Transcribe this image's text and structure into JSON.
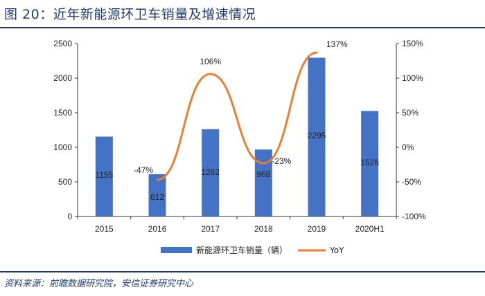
{
  "header": {
    "title": "图 20：近年新能源环卫车销量及增速情况"
  },
  "footer": {
    "source": "资料来源：前瞻数据研究院，安信证券研究中心"
  },
  "colors": {
    "bar": "#4472c4",
    "line": "#ed7d31",
    "title": "#1f3b6e"
  },
  "chart_data": {
    "type": "bar",
    "title": "",
    "categories": [
      "2015",
      "2016",
      "2017",
      "2018",
      "2019",
      "2020H1"
    ],
    "series": [
      {
        "name": "新能源环卫车销量（辆）",
        "type": "bar",
        "axis": "left",
        "values": [
          1155,
          612,
          1262,
          968,
          2295,
          1526
        ],
        "labels": [
          "1155",
          "612",
          "1262",
          "968",
          "2295",
          "1526"
        ]
      },
      {
        "name": "YoY",
        "type": "line",
        "axis": "right",
        "values": [
          null,
          -47,
          106,
          -23,
          137,
          null
        ],
        "labels": [
          null,
          "-47%",
          "106%",
          "-23%",
          "137%",
          null
        ]
      }
    ],
    "y_left": {
      "ylim": [
        0,
        2500
      ],
      "ticks": [
        "0",
        "500",
        "1000",
        "1500",
        "2000",
        "2500"
      ]
    },
    "y_right": {
      "ylim": [
        -100,
        150
      ],
      "ticks": [
        "-100%",
        "-50%",
        "0%",
        "50%",
        "100%",
        "150%"
      ]
    },
    "legend": "bottom-center"
  }
}
